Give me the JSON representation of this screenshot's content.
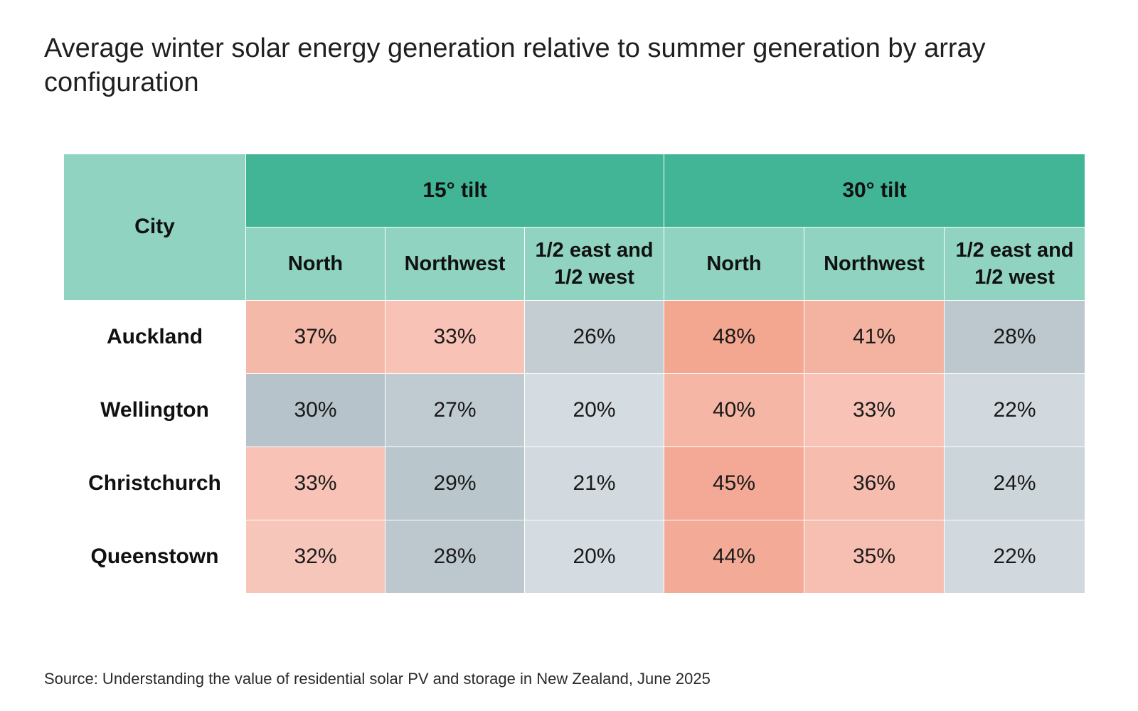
{
  "title": "Average winter solar energy generation relative to summer generation by array configuration",
  "source": "Source: Understanding the value of residential solar PV and storage in New Zealand, June 2025",
  "colors": {
    "header_dark": "#41b596",
    "header_light": "#8fd3c0",
    "scale": {
      "20": "#d4dce1",
      "21": "#d2dadf",
      "22": "#d1d9de",
      "24": "#ccd5da",
      "26": "#c3cdd2",
      "27": "#c0cbd1",
      "28": "#bcc8ce",
      "29": "#b9c6cc",
      "30": "#b6c3ca",
      "32": "#f7c6ba",
      "33": "#f8c3b6",
      "35": "#f7bfb2",
      "36": "#f6bcad",
      "37": "#f5b9a9",
      "40": "#f5b6a5",
      "41": "#f4b2a1",
      "44": "#f3ab98",
      "45": "#f3a995",
      "48": "#f3a690"
    }
  },
  "chart_data": {
    "type": "table",
    "title": "Average winter solar energy generation relative to summer generation by array configuration",
    "row_header": "City",
    "groups": [
      {
        "name": "15° tilt",
        "columns": [
          "North",
          "Northwest",
          "1/2 east and 1/2 west"
        ]
      },
      {
        "name": "30° tilt",
        "columns": [
          "North",
          "Northwest",
          "1/2 east and 1/2 west"
        ]
      }
    ],
    "rows": [
      {
        "city": "Auckland",
        "values": [
          37,
          33,
          26,
          48,
          41,
          28
        ]
      },
      {
        "city": "Wellington",
        "values": [
          30,
          27,
          20,
          40,
          33,
          22
        ]
      },
      {
        "city": "Christchurch",
        "values": [
          33,
          29,
          21,
          45,
          36,
          24
        ]
      },
      {
        "city": "Queenstown",
        "values": [
          32,
          28,
          20,
          44,
          35,
          22
        ]
      }
    ],
    "unit": "%"
  }
}
